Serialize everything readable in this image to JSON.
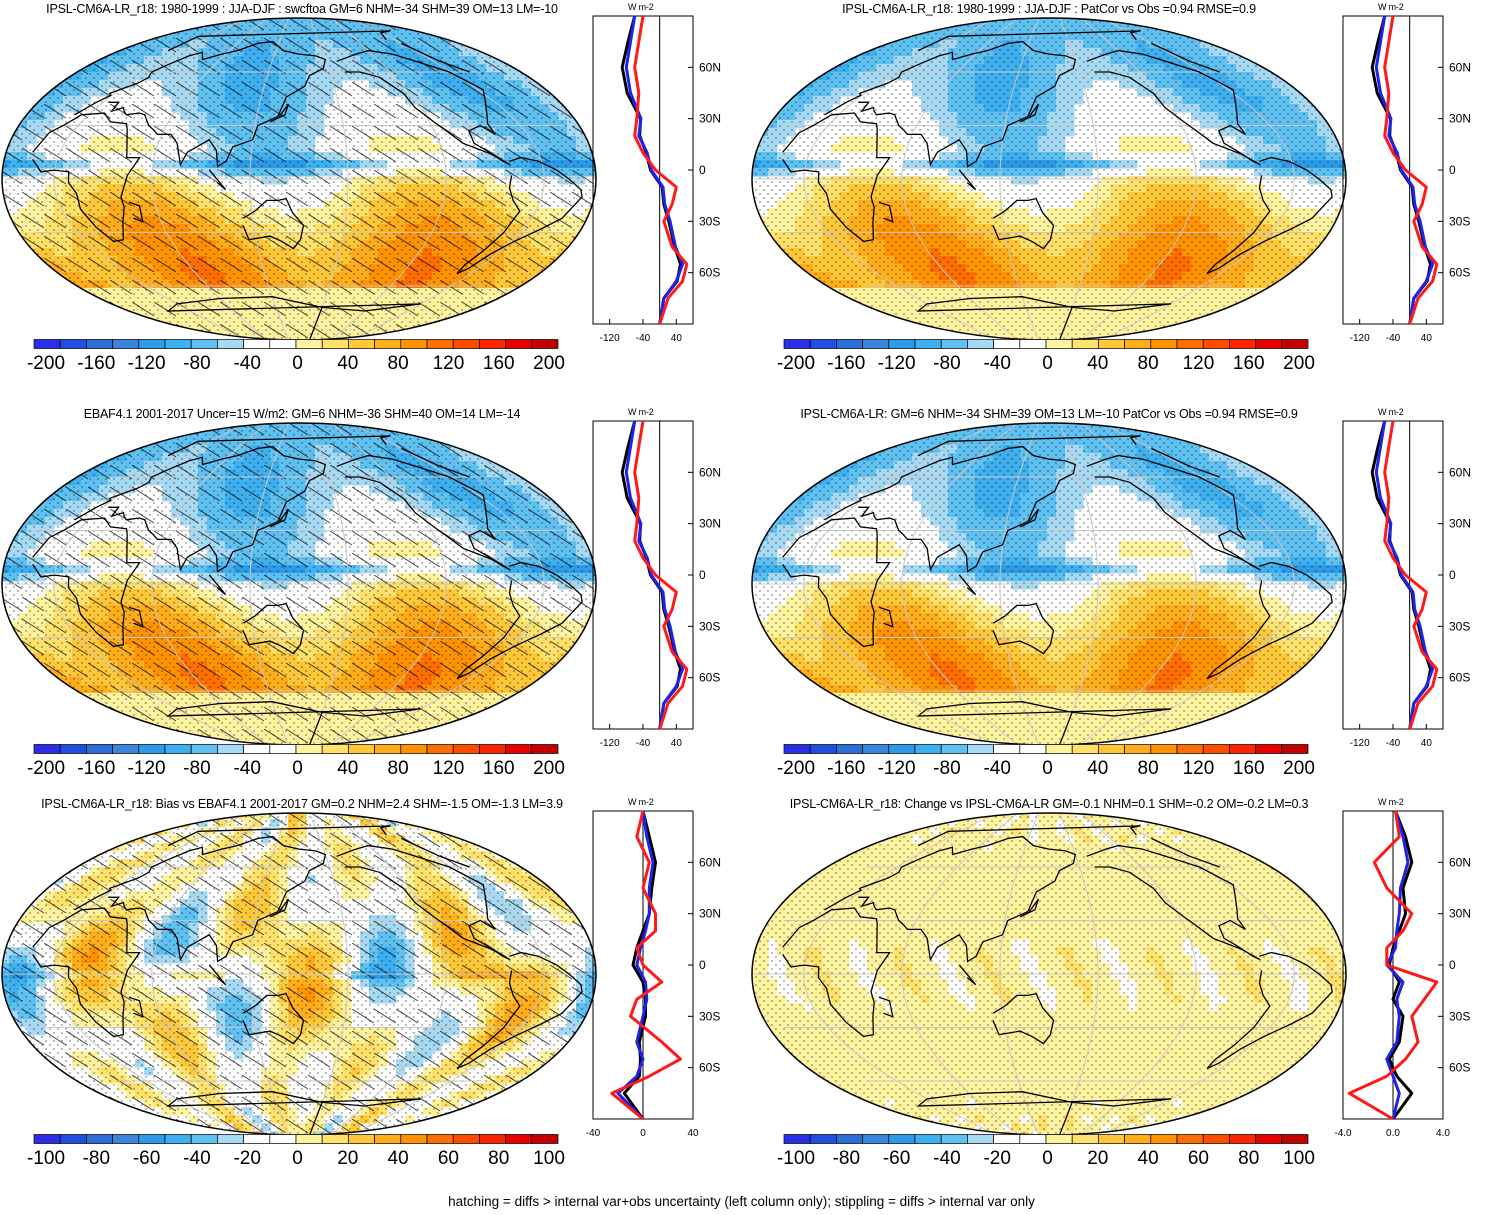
{
  "panels": [
    {
      "id": "p1",
      "title": "IPSL-CM6A-LR_r18: 1980-1999 : JJA-DJF : swcftoa GM=6 NHM=-34 SHM=39 OM=13 LM=-10",
      "field": "main",
      "hatch": true,
      "colorbar": [
        "-200",
        "-160",
        "-120",
        "-80",
        "-40",
        "0",
        "40",
        "80",
        "120",
        "160",
        "200"
      ],
      "profile_xticks": [
        "-120",
        "-40",
        "40"
      ],
      "profile_lat_ticks": [
        "60N",
        "30N",
        "0",
        "30S",
        "60S"
      ],
      "profile_unit": "W m-2"
    },
    {
      "id": "p2",
      "title": "IPSL-CM6A-LR_r18: 1980-1999 : JJA-DJF : PatCor vs Obs =0.94 RMSE=0.9",
      "field": "main",
      "hatch": false,
      "colorbar": [
        "-200",
        "-160",
        "-120",
        "-80",
        "-40",
        "0",
        "40",
        "80",
        "120",
        "160",
        "200"
      ],
      "profile_xticks": [
        "-120",
        "-40",
        "40"
      ],
      "profile_lat_ticks": [
        "60N",
        "30N",
        "0",
        "30S",
        "60S"
      ],
      "profile_unit": "W m-2"
    },
    {
      "id": "p3",
      "title": "EBAF4.1 2001-2017 Uncer=15 W/m2: GM=6 NHM=-36 SHM=40 OM=14 LM=-14",
      "field": "main",
      "hatch": true,
      "colorbar": [
        "-200",
        "-160",
        "-120",
        "-80",
        "-40",
        "0",
        "40",
        "80",
        "120",
        "160",
        "200"
      ],
      "profile_xticks": [
        "-120",
        "-40",
        "40"
      ],
      "profile_lat_ticks": [
        "60N",
        "30N",
        "0",
        "30S",
        "60S"
      ],
      "profile_unit": "W m-2"
    },
    {
      "id": "p4",
      "title": "IPSL-CM6A-LR: GM=6 NHM=-34 SHM=39 OM=13 LM=-10 PatCor vs Obs =0.94 RMSE=0.9",
      "field": "main",
      "hatch": false,
      "colorbar": [
        "-200",
        "-160",
        "-120",
        "-80",
        "-40",
        "0",
        "40",
        "80",
        "120",
        "160",
        "200"
      ],
      "profile_xticks": [
        "-120",
        "-40",
        "40"
      ],
      "profile_lat_ticks": [
        "60N",
        "30N",
        "0",
        "30S",
        "60S"
      ],
      "profile_unit": "W m-2"
    },
    {
      "id": "p5",
      "title": "IPSL-CM6A-LR_r18: Bias vs EBAF4.1 2001-2017 GM=0.2 NHM=2.4 SHM=-1.5 OM=-1.3 LM=3.9",
      "field": "bias",
      "hatch": true,
      "colorbar": [
        "-100",
        "-80",
        "-60",
        "-40",
        "-20",
        "0",
        "20",
        "40",
        "60",
        "80",
        "100"
      ],
      "profile_xticks": [
        "-40",
        "0",
        "40"
      ],
      "profile_lat_ticks": [
        "60N",
        "30N",
        "0",
        "30S",
        "60S"
      ],
      "profile_unit": "W m-2"
    },
    {
      "id": "p6",
      "title": "IPSL-CM6A-LR_r18: Change vs IPSL-CM6A-LR GM=-0.1 NHM=0.1 SHM=-0.2 OM=-0.2 LM=0.3",
      "field": "change",
      "hatch": false,
      "colorbar": [
        "-100",
        "-80",
        "-60",
        "-40",
        "-20",
        "0",
        "20",
        "40",
        "60",
        "80",
        "100"
      ],
      "profile_xticks": [
        "-4.0",
        "0.0",
        "4.0"
      ],
      "profile_lat_ticks": [
        "60N",
        "30N",
        "0",
        "30S",
        "60S"
      ],
      "profile_unit": "W m-2"
    }
  ],
  "colors": [
    "#2b2ee8",
    "#1f4fe0",
    "#2b6fd6",
    "#3a86dc",
    "#2e9be8",
    "#3eb0ef",
    "#5fc0f2",
    "#a6d9f3",
    "#ffffff",
    "#ffffff",
    "#fff3a0",
    "#ffe16b",
    "#ffc83a",
    "#ffad1a",
    "#ff9200",
    "#ff6e00",
    "#ff4a00",
    "#ff2300",
    "#e60000",
    "#c40000"
  ],
  "series_colors": {
    "black": "#000000",
    "blue": "#1f22e8",
    "red": "#ff1a1a"
  },
  "footer": "hatching = diffs > internal var+obs uncertainty (left column only); stippling = diffs > internal var only",
  "chart_data": [
    {
      "type": "heatmap",
      "title": "IPSL-CM6A-LR_r18: 1980-1999 : JJA-DJF : swcftoa GM=6 NHM=-34 SHM=39 OM=13 LM=-10",
      "crange": [
        -200,
        200
      ]
    },
    {
      "type": "heatmap",
      "title": "IPSL-CM6A-LR_r18: 1980-1999 : JJA-DJF : PatCor vs Obs =0.94 RMSE=0.9",
      "crange": [
        -200,
        200
      ]
    },
    {
      "type": "heatmap",
      "title": "EBAF4.1 2001-2017 Uncer=15 W/m2: GM=6 NHM=-36 SHM=40 OM=14 LM=-14",
      "crange": [
        -200,
        200
      ]
    },
    {
      "type": "heatmap",
      "title": "IPSL-CM6A-LR: GM=6 NHM=-34 SHM=39 OM=13 LM=-10 PatCor vs Obs =0.94 RMSE=0.9",
      "crange": [
        -200,
        200
      ]
    },
    {
      "type": "heatmap",
      "title": "IPSL-CM6A-LR_r18: Bias vs EBAF4.1 2001-2017 GM=0.2 NHM=2.4 SHM=-1.5 OM=-1.3 LM=3.9",
      "crange": [
        -100,
        100
      ]
    },
    {
      "type": "heatmap",
      "title": "IPSL-CM6A-LR_r18: Change vs IPSL-CM6A-LR GM=-0.1 NHM=0.1 SHM=-0.2 OM=-0.2 LM=0.3",
      "crange": [
        -100,
        100
      ]
    },
    {
      "type": "line",
      "xlabel": "W m-2",
      "xlim": [
        -160,
        80
      ],
      "ylim": [
        -90,
        90
      ],
      "lat": [
        -90,
        -75,
        -65,
        -55,
        -45,
        -30,
        -20,
        -10,
        0,
        10,
        20,
        30,
        45,
        60,
        75,
        90
      ],
      "series": [
        {
          "values": [
            0,
            10,
            40,
            55,
            38,
            25,
            12,
            8,
            -20,
            -30,
            -50,
            -45,
            -70,
            -80,
            -70,
            -60
          ]
        },
        {
          "values": [
            0,
            10,
            42,
            50,
            36,
            22,
            10,
            6,
            -22,
            -32,
            -48,
            -46,
            -78,
            -90,
            -76,
            -60
          ]
        },
        {
          "values": [
            0,
            20,
            55,
            65,
            30,
            10,
            30,
            40,
            -10,
            -40,
            -60,
            -55,
            -50,
            -60,
            -50,
            -40
          ]
        }
      ]
    },
    {
      "type": "line",
      "xlabel": "W m-2",
      "xlim": [
        -160,
        80
      ],
      "ylim": [
        -90,
        90
      ],
      "lat": [
        -90,
        -75,
        -65,
        -55,
        -45,
        -30,
        -20,
        -10,
        0,
        10,
        20,
        30,
        45,
        60,
        75,
        90
      ],
      "series": [
        {
          "values": [
            0,
            10,
            40,
            55,
            38,
            25,
            12,
            8,
            -20,
            -30,
            -50,
            -45,
            -70,
            -80,
            -70,
            -60
          ]
        },
        {
          "values": [
            0,
            10,
            42,
            50,
            36,
            22,
            10,
            6,
            -22,
            -32,
            -48,
            -46,
            -78,
            -90,
            -76,
            -60
          ]
        },
        {
          "values": [
            0,
            20,
            55,
            65,
            30,
            10,
            30,
            40,
            -10,
            -40,
            -60,
            -55,
            -50,
            -60,
            -50,
            -40
          ]
        }
      ]
    },
    {
      "type": "line",
      "xlabel": "W m-2",
      "xlim": [
        -160,
        80
      ],
      "ylim": [
        -90,
        90
      ],
      "lat": [
        -90,
        -75,
        -65,
        -55,
        -45,
        -30,
        -20,
        -10,
        0,
        10,
        20,
        30,
        45,
        60,
        75,
        90
      ],
      "series": [
        {
          "values": [
            0,
            10,
            40,
            55,
            38,
            25,
            12,
            8,
            -20,
            -30,
            -50,
            -45,
            -70,
            -80,
            -70,
            -60
          ]
        },
        {
          "values": [
            0,
            10,
            42,
            50,
            36,
            22,
            10,
            6,
            -22,
            -32,
            -48,
            -46,
            -78,
            -90,
            -76,
            -60
          ]
        },
        {
          "values": [
            0,
            20,
            55,
            65,
            30,
            10,
            30,
            40,
            -10,
            -40,
            -60,
            -55,
            -50,
            -60,
            -50,
            -40
          ]
        }
      ]
    },
    {
      "type": "line",
      "xlabel": "W m-2",
      "xlim": [
        -160,
        80
      ],
      "ylim": [
        -90,
        90
      ],
      "lat": [
        -90,
        -75,
        -65,
        -55,
        -45,
        -30,
        -20,
        -10,
        0,
        10,
        20,
        30,
        45,
        60,
        75,
        90
      ],
      "series": [
        {
          "values": [
            0,
            10,
            40,
            55,
            38,
            25,
            12,
            8,
            -20,
            -30,
            -50,
            -45,
            -70,
            -80,
            -70,
            -60
          ]
        },
        {
          "values": [
            0,
            10,
            42,
            50,
            36,
            22,
            10,
            6,
            -22,
            -32,
            -48,
            -46,
            -78,
            -90,
            -76,
            -60
          ]
        },
        {
          "values": [
            0,
            20,
            55,
            65,
            30,
            10,
            30,
            40,
            -10,
            -40,
            -60,
            -55,
            -50,
            -60,
            -50,
            -40
          ]
        }
      ]
    },
    {
      "type": "line",
      "xlabel": "W m-2",
      "xlim": [
        -40,
        40
      ],
      "ylim": [
        -90,
        90
      ],
      "lat": [
        -90,
        -75,
        -65,
        -55,
        -45,
        -30,
        -20,
        -10,
        0,
        10,
        20,
        30,
        45,
        60,
        75,
        90
      ],
      "series": [
        {
          "values": [
            0,
            -20,
            -5,
            0,
            -5,
            0,
            3,
            2,
            -5,
            -2,
            2,
            5,
            5,
            8,
            3,
            0
          ]
        },
        {
          "values": [
            0,
            -15,
            -3,
            -2,
            -3,
            2,
            2,
            0,
            -8,
            -5,
            0,
            5,
            7,
            10,
            5,
            0
          ]
        },
        {
          "values": [
            0,
            -25,
            5,
            30,
            15,
            -10,
            -5,
            15,
            0,
            -5,
            10,
            10,
            0,
            5,
            -5,
            0
          ]
        }
      ]
    },
    {
      "type": "line",
      "xlabel": "W m-2",
      "xlim": [
        -4,
        4
      ],
      "ylim": [
        -90,
        90
      ],
      "lat": [
        -90,
        -75,
        -65,
        -55,
        -45,
        -30,
        -20,
        -10,
        0,
        10,
        20,
        30,
        45,
        60,
        75,
        90
      ],
      "series": [
        {
          "values": [
            0,
            0.5,
            0,
            -0.5,
            0.3,
            0.5,
            0.3,
            0.8,
            -0.5,
            0.2,
            0.3,
            0.5,
            0.6,
            1.2,
            0.8,
            0.2
          ]
        },
        {
          "values": [
            0,
            1.5,
            0.3,
            -0.3,
            0.5,
            0.8,
            0,
            0.5,
            -0.3,
            0,
            0.5,
            1.0,
            0.8,
            1.5,
            1.0,
            0.2
          ]
        },
        {
          "values": [
            0,
            -3.5,
            -0.5,
            1,
            2,
            1.5,
            2.5,
            3.5,
            -0.5,
            -0.5,
            0.8,
            1.5,
            -0.5,
            -1.5,
            0.5,
            0.2
          ]
        }
      ]
    }
  ]
}
